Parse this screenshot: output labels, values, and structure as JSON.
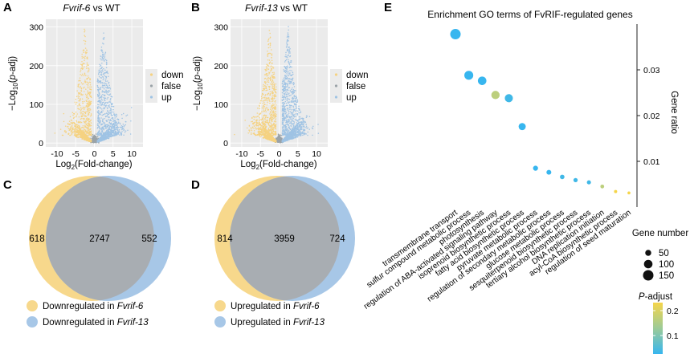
{
  "panels": {
    "A": "A",
    "B": "B",
    "C": "C",
    "D": "D",
    "E": "E"
  },
  "colors": {
    "down": "#F5D281",
    "false": "#9aa3a8",
    "up": "#9FC3E4",
    "overlap": "#A8ADB2",
    "venn_yellow": "#F7D88C",
    "venn_blue": "#A7C7E7"
  },
  "chart_data": [
    {
      "type": "scatter",
      "id": "A",
      "title_italic": "Fvrif-6",
      "title_rest": " vs WT",
      "xlabel": "Log2(Fold-change)",
      "ylabel": "−Log10(p-adj)",
      "xlim": [
        -13,
        13
      ],
      "ylim": [
        -10,
        320
      ],
      "xticks": [
        "-10",
        "-5",
        "0",
        "5",
        "10"
      ],
      "yticks": [
        "0",
        "100",
        "200",
        "300"
      ],
      "legend": [
        "down",
        "false",
        "up"
      ],
      "legend_position": "right",
      "grid": true
    },
    {
      "type": "scatter",
      "id": "B",
      "title_italic": "Fvrif-13",
      "title_rest": " vs WT",
      "xlabel": "Log2(Fold-change)",
      "ylabel": "−Log10(p-adj)",
      "xlim": [
        -13,
        13
      ],
      "ylim": [
        -10,
        320
      ],
      "xticks": [
        "-10",
        "-5",
        "0",
        "5",
        "10"
      ],
      "yticks": [
        "0",
        "100",
        "200",
        "300"
      ],
      "legend": [
        "down",
        "false",
        "up"
      ],
      "legend_position": "right",
      "grid": true
    },
    {
      "type": "venn",
      "id": "C",
      "left_only": "618",
      "overlap": "2747",
      "right_only": "552",
      "legend": [
        {
          "text": "Downregulated in ",
          "italic": "Fvrif-6"
        },
        {
          "text": "Downregulated in ",
          "italic": "Fvrif-13"
        }
      ]
    },
    {
      "type": "venn",
      "id": "D",
      "left_only": "814",
      "overlap": "3959",
      "right_only": "724",
      "legend": [
        {
          "text": "Upregulated in ",
          "italic": "Fvrif-6"
        },
        {
          "text": "Upregulated in ",
          "italic": "Fvrif-13"
        }
      ]
    },
    {
      "type": "scatter",
      "id": "E",
      "title": "Enrichment GO terms of FvRIF-regulated genes",
      "ylabel": "Gene ratio",
      "ylim": [
        0,
        0.04
      ],
      "yticks": [
        0.01,
        0.02,
        0.03
      ],
      "terms": [
        {
          "term": "transmembrane transport",
          "gene_ratio": 0.0378,
          "gene_number": 150,
          "p_adjust": 0.05
        },
        {
          "term": "sulfur compound metabolic process",
          "gene_ratio": 0.0288,
          "gene_number": 110,
          "p_adjust": 0.05
        },
        {
          "term": "photosynthesis",
          "gene_ratio": 0.0276,
          "gene_number": 100,
          "p_adjust": 0.05
        },
        {
          "term": "regulation of ABA-activated signaling pathway",
          "gene_ratio": 0.0245,
          "gene_number": 95,
          "p_adjust": 0.2
        },
        {
          "term": "isoprenoid biosynthetic process",
          "gene_ratio": 0.0238,
          "gene_number": 90,
          "p_adjust": 0.06
        },
        {
          "term": "fatty acid biosynthetic process",
          "gene_ratio": 0.0176,
          "gene_number": 70,
          "p_adjust": 0.05
        },
        {
          "term": "pyruvate metabolic process",
          "gene_ratio": 0.0085,
          "gene_number": 35,
          "p_adjust": 0.05
        },
        {
          "term": "regulation of secondary metabolic process",
          "gene_ratio": 0.0076,
          "gene_number": 32,
          "p_adjust": 0.05
        },
        {
          "term": "glucose metabolic process",
          "gene_ratio": 0.0066,
          "gene_number": 28,
          "p_adjust": 0.06
        },
        {
          "term": "sesquiterpenoid biosynthetic process",
          "gene_ratio": 0.0059,
          "gene_number": 25,
          "p_adjust": 0.06
        },
        {
          "term": "tertiary alcohol biosynthetic process",
          "gene_ratio": 0.0054,
          "gene_number": 23,
          "p_adjust": 0.06
        },
        {
          "term": "DNA replication initiation",
          "gene_ratio": 0.0045,
          "gene_number": 20,
          "p_adjust": 0.2
        },
        {
          "term": "acyl-CoA biosynthetic process",
          "gene_ratio": 0.0034,
          "gene_number": 14,
          "p_adjust": 0.27
        },
        {
          "term": "regulation of seed maturation",
          "gene_ratio": 0.0031,
          "gene_number": 12,
          "p_adjust": 0.27
        }
      ],
      "size_legend_title": "Gene number",
      "size_legend": [
        50,
        100,
        150
      ],
      "color_legend_title_italic": "P",
      "color_legend_title_rest": "-adjust",
      "color_legend_ticks": [
        "0.2",
        "0.1"
      ]
    }
  ]
}
